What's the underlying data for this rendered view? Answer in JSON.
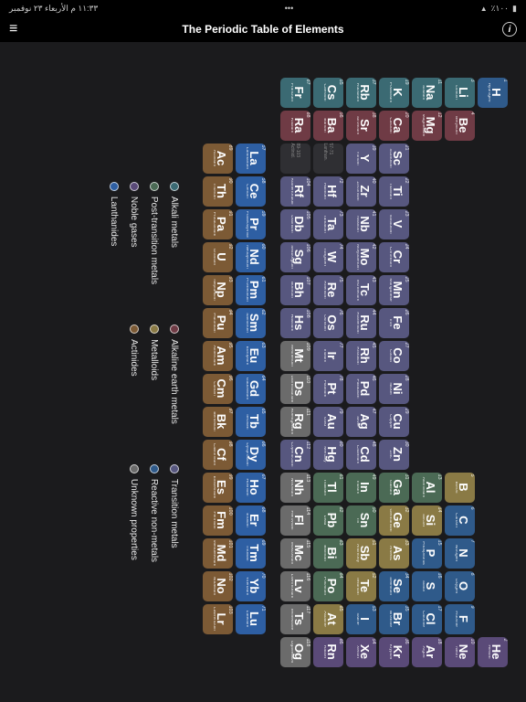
{
  "status": {
    "left": "١١:٣٣ م  الأربعاء ٢٣ نوفمبر",
    "right_signal": "٪١٠٠"
  },
  "nav": {
    "title": "The Periodic Table of Elements",
    "menu_glyph": "≡",
    "info_glyph": "i"
  },
  "colors": {
    "background": "#1b1b1d",
    "cell_border_radius": 5,
    "categories": {
      "alkali": "#3b6a73",
      "alkaline_earth": "#6f3b45",
      "transition": "#57577f",
      "post_transition": "#4b6a55",
      "lanthanide": "#2e5fa3",
      "actinide": "#7c5a35",
      "metalloid": "#8a7a45",
      "reactive_nm": "#2f5a8a",
      "noble_gas": "#5a4a78",
      "unknown": "#6b6b6b"
    }
  },
  "legend": [
    {
      "label": "Alkali metals",
      "cat": "alkali"
    },
    {
      "label": "Alkaline earth metals",
      "cat": "alkaline_earth"
    },
    {
      "label": "Transition metals",
      "cat": "transition"
    },
    {
      "label": "Post-transition metals",
      "cat": "post_transition"
    },
    {
      "label": "Metalloids",
      "cat": "metalloid"
    },
    {
      "label": "Reactive non-metals",
      "cat": "reactive_nm"
    },
    {
      "label": "Noble gases",
      "cat": "noble_gas"
    },
    {
      "label": "Actinides",
      "cat": "actinide"
    },
    {
      "label": "Unknown properties",
      "cat": "unknown"
    },
    {
      "label": "Lanthanides",
      "cat": "lanthanide"
    }
  ],
  "placeholders": [
    {
      "row": 6,
      "col": 3,
      "label": "57-71 Lanthan."
    },
    {
      "row": 7,
      "col": 3,
      "label": "89-103 Actinid."
    }
  ],
  "elements": [
    {
      "n": 1,
      "s": "H",
      "nm": "Hydrogen",
      "r": 1,
      "c": 1,
      "cat": "reactive_nm"
    },
    {
      "n": 2,
      "s": "He",
      "nm": "Helium",
      "r": 1,
      "c": 18,
      "cat": "noble_gas"
    },
    {
      "n": 3,
      "s": "Li",
      "nm": "Lithium",
      "r": 2,
      "c": 1,
      "cat": "alkali"
    },
    {
      "n": 4,
      "s": "Be",
      "nm": "Beryllium",
      "r": 2,
      "c": 2,
      "cat": "alkaline_earth"
    },
    {
      "n": 5,
      "s": "B",
      "nm": "Boron",
      "r": 2,
      "c": 13,
      "cat": "metalloid"
    },
    {
      "n": 6,
      "s": "C",
      "nm": "Carbon",
      "r": 2,
      "c": 14,
      "cat": "reactive_nm"
    },
    {
      "n": 7,
      "s": "N",
      "nm": "Nitrogen",
      "r": 2,
      "c": 15,
      "cat": "reactive_nm"
    },
    {
      "n": 8,
      "s": "O",
      "nm": "Oxygen",
      "r": 2,
      "c": 16,
      "cat": "reactive_nm"
    },
    {
      "n": 9,
      "s": "F",
      "nm": "Fluorine",
      "r": 2,
      "c": 17,
      "cat": "reactive_nm"
    },
    {
      "n": 10,
      "s": "Ne",
      "nm": "Neon",
      "r": 2,
      "c": 18,
      "cat": "noble_gas"
    },
    {
      "n": 11,
      "s": "Na",
      "nm": "Sodium",
      "r": 3,
      "c": 1,
      "cat": "alkali"
    },
    {
      "n": 12,
      "s": "Mg",
      "nm": "Magnesium",
      "r": 3,
      "c": 2,
      "cat": "alkaline_earth"
    },
    {
      "n": 13,
      "s": "Al",
      "nm": "Aluminium",
      "r": 3,
      "c": 13,
      "cat": "post_transition"
    },
    {
      "n": 14,
      "s": "Si",
      "nm": "Silicon",
      "r": 3,
      "c": 14,
      "cat": "metalloid"
    },
    {
      "n": 15,
      "s": "P",
      "nm": "Phosphorus",
      "r": 3,
      "c": 15,
      "cat": "reactive_nm"
    },
    {
      "n": 16,
      "s": "S",
      "nm": "Sulfur",
      "r": 3,
      "c": 16,
      "cat": "reactive_nm"
    },
    {
      "n": 17,
      "s": "Cl",
      "nm": "Chlorine",
      "r": 3,
      "c": 17,
      "cat": "reactive_nm"
    },
    {
      "n": 18,
      "s": "Ar",
      "nm": "Argon",
      "r": 3,
      "c": 18,
      "cat": "noble_gas"
    },
    {
      "n": 19,
      "s": "K",
      "nm": "Potassium",
      "r": 4,
      "c": 1,
      "cat": "alkali"
    },
    {
      "n": 20,
      "s": "Ca",
      "nm": "Calcium",
      "r": 4,
      "c": 2,
      "cat": "alkaline_earth"
    },
    {
      "n": 21,
      "s": "Sc",
      "nm": "Scandium",
      "r": 4,
      "c": 3,
      "cat": "transition"
    },
    {
      "n": 22,
      "s": "Ti",
      "nm": "Titanium",
      "r": 4,
      "c": 4,
      "cat": "transition"
    },
    {
      "n": 23,
      "s": "V",
      "nm": "Vanadium",
      "r": 4,
      "c": 5,
      "cat": "transition"
    },
    {
      "n": 24,
      "s": "Cr",
      "nm": "Chromium",
      "r": 4,
      "c": 6,
      "cat": "transition"
    },
    {
      "n": 25,
      "s": "Mn",
      "nm": "Manganese",
      "r": 4,
      "c": 7,
      "cat": "transition"
    },
    {
      "n": 26,
      "s": "Fe",
      "nm": "Iron",
      "r": 4,
      "c": 8,
      "cat": "transition"
    },
    {
      "n": 27,
      "s": "Co",
      "nm": "Cobalt",
      "r": 4,
      "c": 9,
      "cat": "transition"
    },
    {
      "n": 28,
      "s": "Ni",
      "nm": "Nickel",
      "r": 4,
      "c": 10,
      "cat": "transition"
    },
    {
      "n": 29,
      "s": "Cu",
      "nm": "Copper",
      "r": 4,
      "c": 11,
      "cat": "transition"
    },
    {
      "n": 30,
      "s": "Zn",
      "nm": "Zinc",
      "r": 4,
      "c": 12,
      "cat": "transition"
    },
    {
      "n": 31,
      "s": "Ga",
      "nm": "Gallium",
      "r": 4,
      "c": 13,
      "cat": "post_transition"
    },
    {
      "n": 32,
      "s": "Ge",
      "nm": "Germanium",
      "r": 4,
      "c": 14,
      "cat": "metalloid"
    },
    {
      "n": 33,
      "s": "As",
      "nm": "Arsenic",
      "r": 4,
      "c": 15,
      "cat": "metalloid"
    },
    {
      "n": 34,
      "s": "Se",
      "nm": "Selenium",
      "r": 4,
      "c": 16,
      "cat": "reactive_nm"
    },
    {
      "n": 35,
      "s": "Br",
      "nm": "Bromine",
      "r": 4,
      "c": 17,
      "cat": "reactive_nm"
    },
    {
      "n": 36,
      "s": "Kr",
      "nm": "Krypton",
      "r": 4,
      "c": 18,
      "cat": "noble_gas"
    },
    {
      "n": 37,
      "s": "Rb",
      "nm": "Rubidium",
      "r": 5,
      "c": 1,
      "cat": "alkali"
    },
    {
      "n": 38,
      "s": "Sr",
      "nm": "Strontium",
      "r": 5,
      "c": 2,
      "cat": "alkaline_earth"
    },
    {
      "n": 39,
      "s": "Y",
      "nm": "Yttrium",
      "r": 5,
      "c": 3,
      "cat": "transition"
    },
    {
      "n": 40,
      "s": "Zr",
      "nm": "Zirconium",
      "r": 5,
      "c": 4,
      "cat": "transition"
    },
    {
      "n": 41,
      "s": "Nb",
      "nm": "Niobium",
      "r": 5,
      "c": 5,
      "cat": "transition"
    },
    {
      "n": 42,
      "s": "Mo",
      "nm": "Molybdenum",
      "r": 5,
      "c": 6,
      "cat": "transition"
    },
    {
      "n": 43,
      "s": "Tc",
      "nm": "Technetium",
      "r": 5,
      "c": 7,
      "cat": "transition"
    },
    {
      "n": 44,
      "s": "Ru",
      "nm": "Ruthenium",
      "r": 5,
      "c": 8,
      "cat": "transition"
    },
    {
      "n": 45,
      "s": "Rh",
      "nm": "Rhodium",
      "r": 5,
      "c": 9,
      "cat": "transition"
    },
    {
      "n": 46,
      "s": "Pd",
      "nm": "Palladium",
      "r": 5,
      "c": 10,
      "cat": "transition"
    },
    {
      "n": 47,
      "s": "Ag",
      "nm": "Silver",
      "r": 5,
      "c": 11,
      "cat": "transition"
    },
    {
      "n": 48,
      "s": "Cd",
      "nm": "Cadmium",
      "r": 5,
      "c": 12,
      "cat": "transition"
    },
    {
      "n": 49,
      "s": "In",
      "nm": "Indium",
      "r": 5,
      "c": 13,
      "cat": "post_transition"
    },
    {
      "n": 50,
      "s": "Sn",
      "nm": "Tin",
      "r": 5,
      "c": 14,
      "cat": "post_transition"
    },
    {
      "n": 51,
      "s": "Sb",
      "nm": "Antimony",
      "r": 5,
      "c": 15,
      "cat": "metalloid"
    },
    {
      "n": 52,
      "s": "Te",
      "nm": "Tellurium",
      "r": 5,
      "c": 16,
      "cat": "metalloid"
    },
    {
      "n": 53,
      "s": "I",
      "nm": "Iodine",
      "r": 5,
      "c": 17,
      "cat": "reactive_nm"
    },
    {
      "n": 54,
      "s": "Xe",
      "nm": "Xenon",
      "r": 5,
      "c": 18,
      "cat": "noble_gas"
    },
    {
      "n": 55,
      "s": "Cs",
      "nm": "Caesium",
      "r": 6,
      "c": 1,
      "cat": "alkali"
    },
    {
      "n": 56,
      "s": "Ba",
      "nm": "Barium",
      "r": 6,
      "c": 2,
      "cat": "alkaline_earth"
    },
    {
      "n": 72,
      "s": "Hf",
      "nm": "Hafnium",
      "r": 6,
      "c": 4,
      "cat": "transition"
    },
    {
      "n": 73,
      "s": "Ta",
      "nm": "Tantalum",
      "r": 6,
      "c": 5,
      "cat": "transition"
    },
    {
      "n": 74,
      "s": "W",
      "nm": "Tungsten",
      "r": 6,
      "c": 6,
      "cat": "transition"
    },
    {
      "n": 75,
      "s": "Re",
      "nm": "Rhenium",
      "r": 6,
      "c": 7,
      "cat": "transition"
    },
    {
      "n": 76,
      "s": "Os",
      "nm": "Osmium",
      "r": 6,
      "c": 8,
      "cat": "transition"
    },
    {
      "n": 77,
      "s": "Ir",
      "nm": "Iridium",
      "r": 6,
      "c": 9,
      "cat": "transition"
    },
    {
      "n": 78,
      "s": "Pt",
      "nm": "Platinum",
      "r": 6,
      "c": 10,
      "cat": "transition"
    },
    {
      "n": 79,
      "s": "Au",
      "nm": "Gold",
      "r": 6,
      "c": 11,
      "cat": "transition"
    },
    {
      "n": 80,
      "s": "Hg",
      "nm": "Mercury",
      "r": 6,
      "c": 12,
      "cat": "transition"
    },
    {
      "n": 81,
      "s": "Tl",
      "nm": "Thallium",
      "r": 6,
      "c": 13,
      "cat": "post_transition"
    },
    {
      "n": 82,
      "s": "Pb",
      "nm": "Lead",
      "r": 6,
      "c": 14,
      "cat": "post_transition"
    },
    {
      "n": 83,
      "s": "Bi",
      "nm": "Bismuth",
      "r": 6,
      "c": 15,
      "cat": "post_transition"
    },
    {
      "n": 84,
      "s": "Po",
      "nm": "Polonium",
      "r": 6,
      "c": 16,
      "cat": "post_transition"
    },
    {
      "n": 85,
      "s": "At",
      "nm": "Astatine",
      "r": 6,
      "c": 17,
      "cat": "metalloid"
    },
    {
      "n": 86,
      "s": "Rn",
      "nm": "Radon",
      "r": 6,
      "c": 18,
      "cat": "noble_gas"
    },
    {
      "n": 87,
      "s": "Fr",
      "nm": "Francium",
      "r": 7,
      "c": 1,
      "cat": "alkali"
    },
    {
      "n": 88,
      "s": "Ra",
      "nm": "Radium",
      "r": 7,
      "c": 2,
      "cat": "alkaline_earth"
    },
    {
      "n": 104,
      "s": "Rf",
      "nm": "Rutherfordium",
      "r": 7,
      "c": 4,
      "cat": "transition"
    },
    {
      "n": 105,
      "s": "Db",
      "nm": "Dubnium",
      "r": 7,
      "c": 5,
      "cat": "transition"
    },
    {
      "n": 106,
      "s": "Sg",
      "nm": "Seaborgium",
      "r": 7,
      "c": 6,
      "cat": "transition"
    },
    {
      "n": 107,
      "s": "Bh",
      "nm": "Bohrium",
      "r": 7,
      "c": 7,
      "cat": "transition"
    },
    {
      "n": 108,
      "s": "Hs",
      "nm": "Hassium",
      "r": 7,
      "c": 8,
      "cat": "transition"
    },
    {
      "n": 109,
      "s": "Mt",
      "nm": "Meitnerium",
      "r": 7,
      "c": 9,
      "cat": "unknown"
    },
    {
      "n": 110,
      "s": "Ds",
      "nm": "Darmstadtium",
      "r": 7,
      "c": 10,
      "cat": "unknown"
    },
    {
      "n": 111,
      "s": "Rg",
      "nm": "Roentgenium",
      "r": 7,
      "c": 11,
      "cat": "unknown"
    },
    {
      "n": 112,
      "s": "Cn",
      "nm": "Copernicium",
      "r": 7,
      "c": 12,
      "cat": "transition"
    },
    {
      "n": 113,
      "s": "Nh",
      "nm": "Nihonium",
      "r": 7,
      "c": 13,
      "cat": "unknown"
    },
    {
      "n": 114,
      "s": "Fl",
      "nm": "Flerovium",
      "r": 7,
      "c": 14,
      "cat": "unknown"
    },
    {
      "n": 115,
      "s": "Mc",
      "nm": "Moscovium",
      "r": 7,
      "c": 15,
      "cat": "unknown"
    },
    {
      "n": 116,
      "s": "Lv",
      "nm": "Livermorium",
      "r": 7,
      "c": 16,
      "cat": "unknown"
    },
    {
      "n": 117,
      "s": "Ts",
      "nm": "Tennessine",
      "r": 7,
      "c": 17,
      "cat": "unknown"
    },
    {
      "n": 118,
      "s": "Og",
      "nm": "Oganesson",
      "r": 7,
      "c": 18,
      "cat": "unknown"
    },
    {
      "n": 57,
      "s": "La",
      "nm": "Lanthanum",
      "r": 9,
      "c": 3,
      "cat": "lanthanide"
    },
    {
      "n": 58,
      "s": "Ce",
      "nm": "Cerium",
      "r": 9,
      "c": 4,
      "cat": "lanthanide"
    },
    {
      "n": 59,
      "s": "Pr",
      "nm": "Praseodymium",
      "r": 9,
      "c": 5,
      "cat": "lanthanide"
    },
    {
      "n": 60,
      "s": "Nd",
      "nm": "Neodymium",
      "r": 9,
      "c": 6,
      "cat": "lanthanide"
    },
    {
      "n": 61,
      "s": "Pm",
      "nm": "Promethium",
      "r": 9,
      "c": 7,
      "cat": "lanthanide"
    },
    {
      "n": 62,
      "s": "Sm",
      "nm": "Samarium",
      "r": 9,
      "c": 8,
      "cat": "lanthanide"
    },
    {
      "n": 63,
      "s": "Eu",
      "nm": "Europium",
      "r": 9,
      "c": 9,
      "cat": "lanthanide"
    },
    {
      "n": 64,
      "s": "Gd",
      "nm": "Gadolinium",
      "r": 9,
      "c": 10,
      "cat": "lanthanide"
    },
    {
      "n": 65,
      "s": "Tb",
      "nm": "Terbium",
      "r": 9,
      "c": 11,
      "cat": "lanthanide"
    },
    {
      "n": 66,
      "s": "Dy",
      "nm": "Dysprosium",
      "r": 9,
      "c": 12,
      "cat": "lanthanide"
    },
    {
      "n": 67,
      "s": "Ho",
      "nm": "Holmium",
      "r": 9,
      "c": 13,
      "cat": "lanthanide"
    },
    {
      "n": 68,
      "s": "Er",
      "nm": "Erbium",
      "r": 9,
      "c": 14,
      "cat": "lanthanide"
    },
    {
      "n": 69,
      "s": "Tm",
      "nm": "Thulium",
      "r": 9,
      "c": 15,
      "cat": "lanthanide"
    },
    {
      "n": 70,
      "s": "Yb",
      "nm": "Ytterbium",
      "r": 9,
      "c": 16,
      "cat": "lanthanide"
    },
    {
      "n": 71,
      "s": "Lu",
      "nm": "Lutetium",
      "r": 9,
      "c": 17,
      "cat": "lanthanide"
    },
    {
      "n": 89,
      "s": "Ac",
      "nm": "Actinium",
      "r": 10,
      "c": 3,
      "cat": "actinide"
    },
    {
      "n": 90,
      "s": "Th",
      "nm": "Thorium",
      "r": 10,
      "c": 4,
      "cat": "actinide"
    },
    {
      "n": 91,
      "s": "Pa",
      "nm": "Protactinium",
      "r": 10,
      "c": 5,
      "cat": "actinide"
    },
    {
      "n": 92,
      "s": "U",
      "nm": "Uranium",
      "r": 10,
      "c": 6,
      "cat": "actinide"
    },
    {
      "n": 93,
      "s": "Np",
      "nm": "Neptunium",
      "r": 10,
      "c": 7,
      "cat": "actinide"
    },
    {
      "n": 94,
      "s": "Pu",
      "nm": "Plutonium",
      "r": 10,
      "c": 8,
      "cat": "actinide"
    },
    {
      "n": 95,
      "s": "Am",
      "nm": "Americium",
      "r": 10,
      "c": 9,
      "cat": "actinide"
    },
    {
      "n": 96,
      "s": "Cm",
      "nm": "Curium",
      "r": 10,
      "c": 10,
      "cat": "actinide"
    },
    {
      "n": 97,
      "s": "Bk",
      "nm": "Berkelium",
      "r": 10,
      "c": 11,
      "cat": "actinide"
    },
    {
      "n": 98,
      "s": "Cf",
      "nm": "Californium",
      "r": 10,
      "c": 12,
      "cat": "actinide"
    },
    {
      "n": 99,
      "s": "Es",
      "nm": "Einsteinium",
      "r": 10,
      "c": 13,
      "cat": "actinide"
    },
    {
      "n": 100,
      "s": "Fm",
      "nm": "Fermium",
      "r": 10,
      "c": 14,
      "cat": "actinide"
    },
    {
      "n": 101,
      "s": "Md",
      "nm": "Mendelevium",
      "r": 10,
      "c": 15,
      "cat": "actinide"
    },
    {
      "n": 102,
      "s": "No",
      "nm": "Nobelium",
      "r": 10,
      "c": 16,
      "cat": "actinide"
    },
    {
      "n": 103,
      "s": "Lr",
      "nm": "Lawrencium",
      "r": 10,
      "c": 17,
      "cat": "actinide"
    }
  ]
}
